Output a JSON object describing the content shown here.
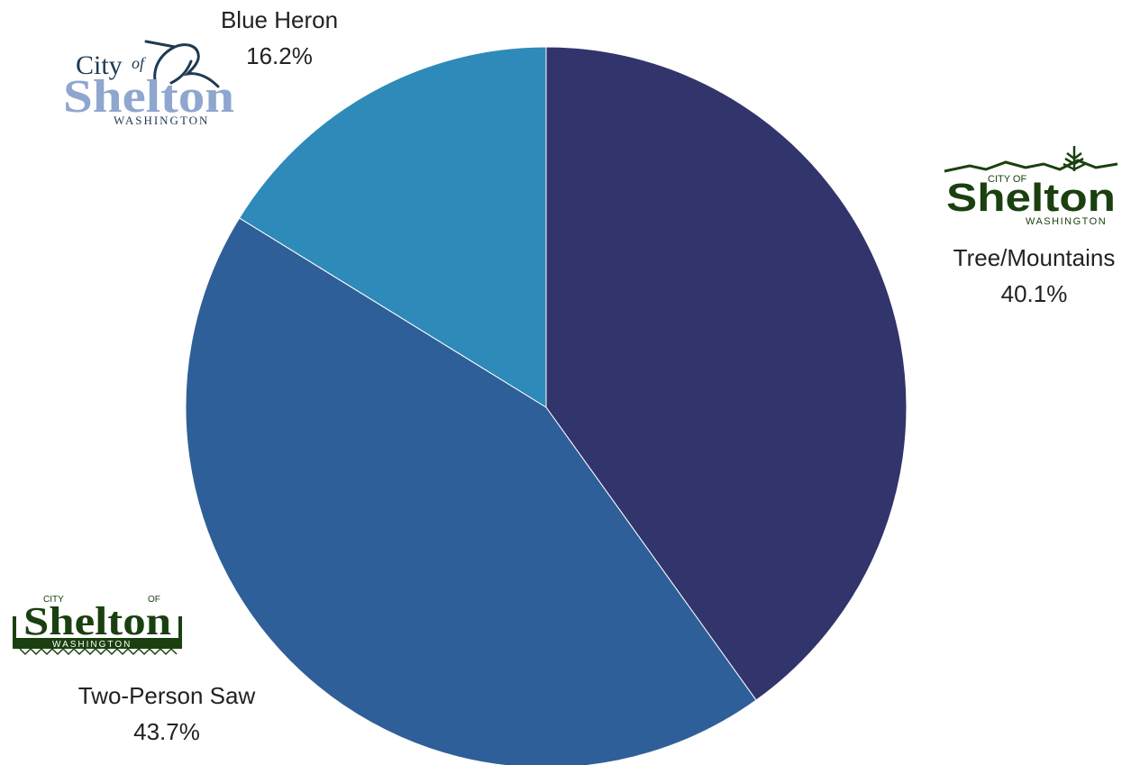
{
  "chart_data": {
    "type": "pie",
    "start_angle_deg": 0,
    "direction": "clockwise",
    "slices": [
      {
        "name": "Tree/Mountains",
        "value": 40.1,
        "label": "40.1%",
        "color": "#32346c"
      },
      {
        "name": "Two-Person Saw",
        "value": 43.7,
        "label": "43.7%",
        "color": "#2f5f98"
      },
      {
        "name": "Blue Heron",
        "value": 16.2,
        "label": "16.2%",
        "color": "#2e8ab8"
      }
    ]
  },
  "logos": {
    "heron": {
      "city": "City",
      "of": "of",
      "name": "Shelton",
      "state": "WASHINGTON",
      "color": "#8fa6cf",
      "accent": "#1f3a52"
    },
    "tree": {
      "city": "CITY OF",
      "name": "Shelton",
      "state": "WASHINGTON",
      "color": "#1b4010"
    },
    "saw": {
      "city": "CITY",
      "of": "OF",
      "name": "Shelton",
      "state": "WASHINGTON",
      "color": "#1b4010"
    }
  }
}
